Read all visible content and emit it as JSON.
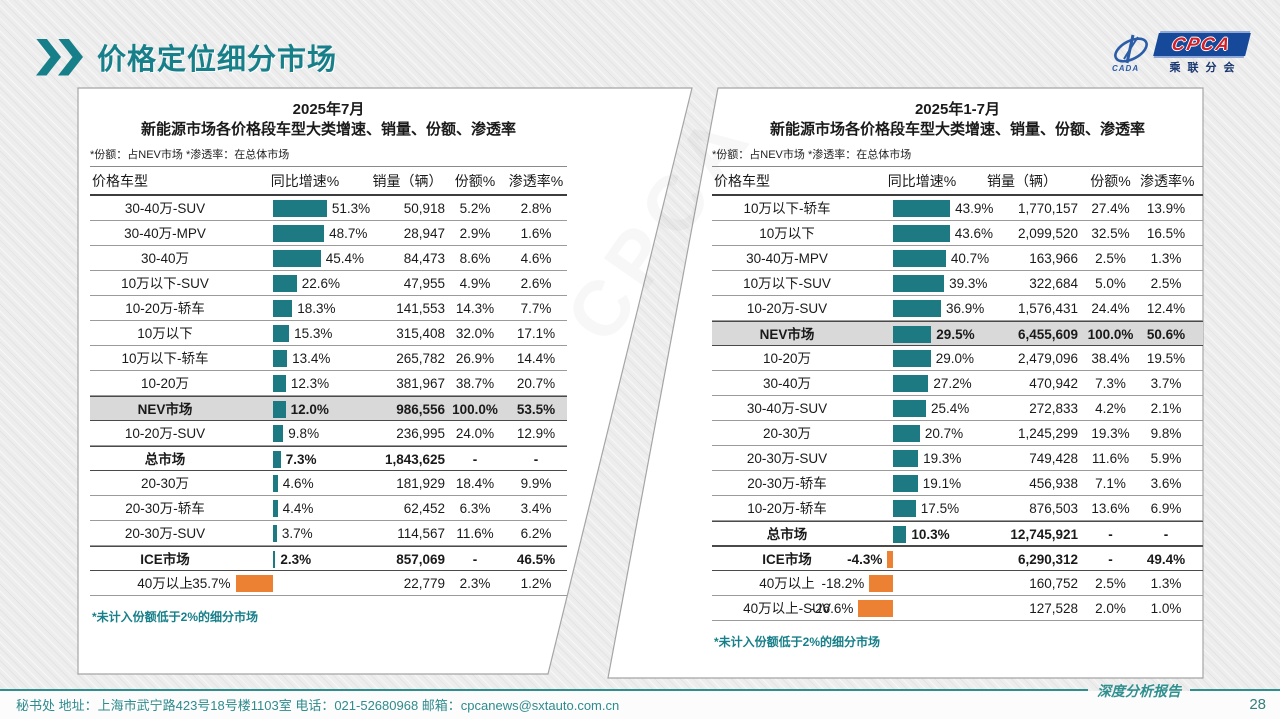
{
  "header": {
    "title": "价格定位细分市场"
  },
  "logo": {
    "cpca": "CPCA",
    "cada": "CADA",
    "sub": "乘联分会"
  },
  "footer": {
    "text": "秘书处   地址：上海市武宁路423号18号楼1103室 电话：021-52680968   邮箱：cpcanews@sxtauto.com.cn",
    "report_label": "深度分析报告",
    "page_number": "28"
  },
  "colors": {
    "teal_bar": "#1e7a82",
    "orange_bar": "#ec8133",
    "title_teal": "#177f89",
    "highlight_row": "#d9d9d9"
  },
  "watermark": "CPCA",
  "chart_data": [
    {
      "type": "table",
      "title_line1": "2025年7月",
      "title_line2": "新能源市场各价格段车型大类增速、销量、份额、渗透率",
      "note": "*份额：占NEV市场  *渗透率：在总体市场",
      "footnote": "*未计入份额低于2%的细分市场",
      "columns": [
        "价格车型",
        "同比增速%",
        "销量（辆）",
        "份额%",
        "渗透率%"
      ],
      "bar_column": "同比增速%",
      "rows": [
        {
          "label": "30-40万-SUV",
          "growth": 51.3,
          "growth_label": "51.3%",
          "sales": "50,918",
          "share": "5.2%",
          "penetration": "2.8%",
          "bold": false,
          "highlight": false
        },
        {
          "label": "30-40万-MPV",
          "growth": 48.7,
          "growth_label": "48.7%",
          "sales": "28,947",
          "share": "2.9%",
          "penetration": "1.6%",
          "bold": false,
          "highlight": false
        },
        {
          "label": "30-40万",
          "growth": 45.4,
          "growth_label": "45.4%",
          "sales": "84,473",
          "share": "8.6%",
          "penetration": "4.6%",
          "bold": false,
          "highlight": false
        },
        {
          "label": "10万以下-SUV",
          "growth": 22.6,
          "growth_label": "22.6%",
          "sales": "47,955",
          "share": "4.9%",
          "penetration": "2.6%",
          "bold": false,
          "highlight": false
        },
        {
          "label": "10-20万-轿车",
          "growth": 18.3,
          "growth_label": "18.3%",
          "sales": "141,553",
          "share": "14.3%",
          "penetration": "7.7%",
          "bold": false,
          "highlight": false
        },
        {
          "label": "10万以下",
          "growth": 15.3,
          "growth_label": "15.3%",
          "sales": "315,408",
          "share": "32.0%",
          "penetration": "17.1%",
          "bold": false,
          "highlight": false
        },
        {
          "label": "10万以下-轿车",
          "growth": 13.4,
          "growth_label": "13.4%",
          "sales": "265,782",
          "share": "26.9%",
          "penetration": "14.4%",
          "bold": false,
          "highlight": false
        },
        {
          "label": "10-20万",
          "growth": 12.3,
          "growth_label": "12.3%",
          "sales": "381,967",
          "share": "38.7%",
          "penetration": "20.7%",
          "bold": false,
          "highlight": false
        },
        {
          "label": "NEV市场",
          "growth": 12.0,
          "growth_label": "12.0%",
          "sales": "986,556",
          "share": "100.0%",
          "penetration": "53.5%",
          "bold": true,
          "highlight": true
        },
        {
          "label": "10-20万-SUV",
          "growth": 9.8,
          "growth_label": "9.8%",
          "sales": "236,995",
          "share": "24.0%",
          "penetration": "12.9%",
          "bold": false,
          "highlight": false
        },
        {
          "label": "总市场",
          "growth": 7.3,
          "growth_label": "7.3%",
          "sales": "1,843,625",
          "share": "-",
          "penetration": "-",
          "bold": true,
          "highlight": false
        },
        {
          "label": "20-30万",
          "growth": 4.6,
          "growth_label": "4.6%",
          "sales": "181,929",
          "share": "18.4%",
          "penetration": "9.9%",
          "bold": false,
          "highlight": false
        },
        {
          "label": "20-30万-轿车",
          "growth": 4.4,
          "growth_label": "4.4%",
          "sales": "62,452",
          "share": "6.3%",
          "penetration": "3.4%",
          "bold": false,
          "highlight": false
        },
        {
          "label": "20-30万-SUV",
          "growth": 3.7,
          "growth_label": "3.7%",
          "sales": "114,567",
          "share": "11.6%",
          "penetration": "6.2%",
          "bold": false,
          "highlight": false
        },
        {
          "label": "ICE市场",
          "growth": 2.3,
          "growth_label": "2.3%",
          "sales": "857,069",
          "share": "-",
          "penetration": "46.5%",
          "bold": true,
          "highlight": false
        },
        {
          "label": "40万以上",
          "growth": -35.7,
          "growth_label": "-35.7%",
          "sales": "22,779",
          "share": "2.3%",
          "penetration": "1.2%",
          "bold": false,
          "highlight": false
        }
      ]
    },
    {
      "type": "table",
      "title_line1": "2025年1-7月",
      "title_line2": "新能源市场各价格段车型大类增速、销量、份额、渗透率",
      "note": "*份额：占NEV市场  *渗透率：在总体市场",
      "footnote": "*未计入份额低于2%的细分市场",
      "columns": [
        "价格车型",
        "同比增速%",
        "销量（辆）",
        "份额%",
        "渗透率%"
      ],
      "bar_column": "同比增速%",
      "rows": [
        {
          "label": "10万以下-轿车",
          "growth": 43.9,
          "growth_label": "43.9%",
          "sales": "1,770,157",
          "share": "27.4%",
          "penetration": "13.9%",
          "bold": false,
          "highlight": false
        },
        {
          "label": "10万以下",
          "growth": 43.6,
          "growth_label": "43.6%",
          "sales": "2,099,520",
          "share": "32.5%",
          "penetration": "16.5%",
          "bold": false,
          "highlight": false
        },
        {
          "label": "30-40万-MPV",
          "growth": 40.7,
          "growth_label": "40.7%",
          "sales": "163,966",
          "share": "2.5%",
          "penetration": "1.3%",
          "bold": false,
          "highlight": false
        },
        {
          "label": "10万以下-SUV",
          "growth": 39.3,
          "growth_label": "39.3%",
          "sales": "322,684",
          "share": "5.0%",
          "penetration": "2.5%",
          "bold": false,
          "highlight": false
        },
        {
          "label": "10-20万-SUV",
          "growth": 36.9,
          "growth_label": "36.9%",
          "sales": "1,576,431",
          "share": "24.4%",
          "penetration": "12.4%",
          "bold": false,
          "highlight": false
        },
        {
          "label": "NEV市场",
          "growth": 29.5,
          "growth_label": "29.5%",
          "sales": "6,455,609",
          "share": "100.0%",
          "penetration": "50.6%",
          "bold": true,
          "highlight": true
        },
        {
          "label": "10-20万",
          "growth": 29.0,
          "growth_label": "29.0%",
          "sales": "2,479,096",
          "share": "38.4%",
          "penetration": "19.5%",
          "bold": false,
          "highlight": false
        },
        {
          "label": "30-40万",
          "growth": 27.2,
          "growth_label": "27.2%",
          "sales": "470,942",
          "share": "7.3%",
          "penetration": "3.7%",
          "bold": false,
          "highlight": false
        },
        {
          "label": "30-40万-SUV",
          "growth": 25.4,
          "growth_label": "25.4%",
          "sales": "272,833",
          "share": "4.2%",
          "penetration": "2.1%",
          "bold": false,
          "highlight": false
        },
        {
          "label": "20-30万",
          "growth": 20.7,
          "growth_label": "20.7%",
          "sales": "1,245,299",
          "share": "19.3%",
          "penetration": "9.8%",
          "bold": false,
          "highlight": false
        },
        {
          "label": "20-30万-SUV",
          "growth": 19.3,
          "growth_label": "19.3%",
          "sales": "749,428",
          "share": "11.6%",
          "penetration": "5.9%",
          "bold": false,
          "highlight": false
        },
        {
          "label": "20-30万-轿车",
          "growth": 19.1,
          "growth_label": "19.1%",
          "sales": "456,938",
          "share": "7.1%",
          "penetration": "3.6%",
          "bold": false,
          "highlight": false
        },
        {
          "label": "10-20万-轿车",
          "growth": 17.5,
          "growth_label": "17.5%",
          "sales": "876,503",
          "share": "13.6%",
          "penetration": "6.9%",
          "bold": false,
          "highlight": false
        },
        {
          "label": "总市场",
          "growth": 10.3,
          "growth_label": "10.3%",
          "sales": "12,745,921",
          "share": "-",
          "penetration": "-",
          "bold": true,
          "highlight": false
        },
        {
          "label": "ICE市场",
          "growth": -4.3,
          "growth_label": "-4.3%",
          "sales": "6,290,312",
          "share": "-",
          "penetration": "49.4%",
          "bold": true,
          "highlight": false
        },
        {
          "label": "40万以上",
          "growth": -18.2,
          "growth_label": "-18.2%",
          "sales": "160,752",
          "share": "2.5%",
          "penetration": "1.3%",
          "bold": false,
          "highlight": false
        },
        {
          "label": "40万以上-SUV",
          "growth": -26.6,
          "growth_label": "-26.6%",
          "sales": "127,528",
          "share": "2.0%",
          "penetration": "1.0%",
          "bold": false,
          "highlight": false
        }
      ]
    }
  ]
}
